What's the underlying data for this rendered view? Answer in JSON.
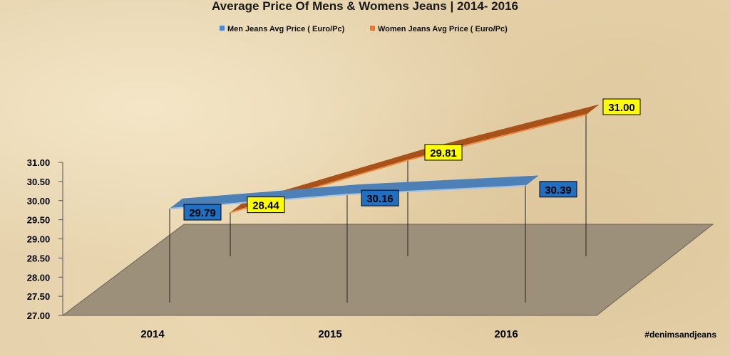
{
  "chart_data": {
    "type": "line",
    "title": "Average Price Of Mens & Womens Jeans | 2014- 2016",
    "categories": [
      "2014",
      "2015",
      "2016"
    ],
    "series": [
      {
        "name": "Men Jeans Avg Price ( Euro/Pc)",
        "values": [
          29.79,
          30.16,
          30.39
        ],
        "labels": [
          "29.79",
          "30.16",
          "30.39"
        ],
        "color": "#3f73ab"
      },
      {
        "name": "Women Jeans Avg Price ( Euro/Pc)",
        "values": [
          28.44,
          29.81,
          31.0
        ],
        "labels": [
          "28.44",
          "29.81",
          "31.00"
        ],
        "color": "#b45a1c"
      }
    ],
    "yticks": [
      "27.00",
      "27.50",
      "28.00",
      "28.50",
      "29.00",
      "29.50",
      "30.00",
      "30.50",
      "31.00"
    ],
    "ylim": [
      27,
      31
    ],
    "legend_position": "top",
    "style": "3d-ribbon",
    "annotation": "#denimsandjeans"
  }
}
